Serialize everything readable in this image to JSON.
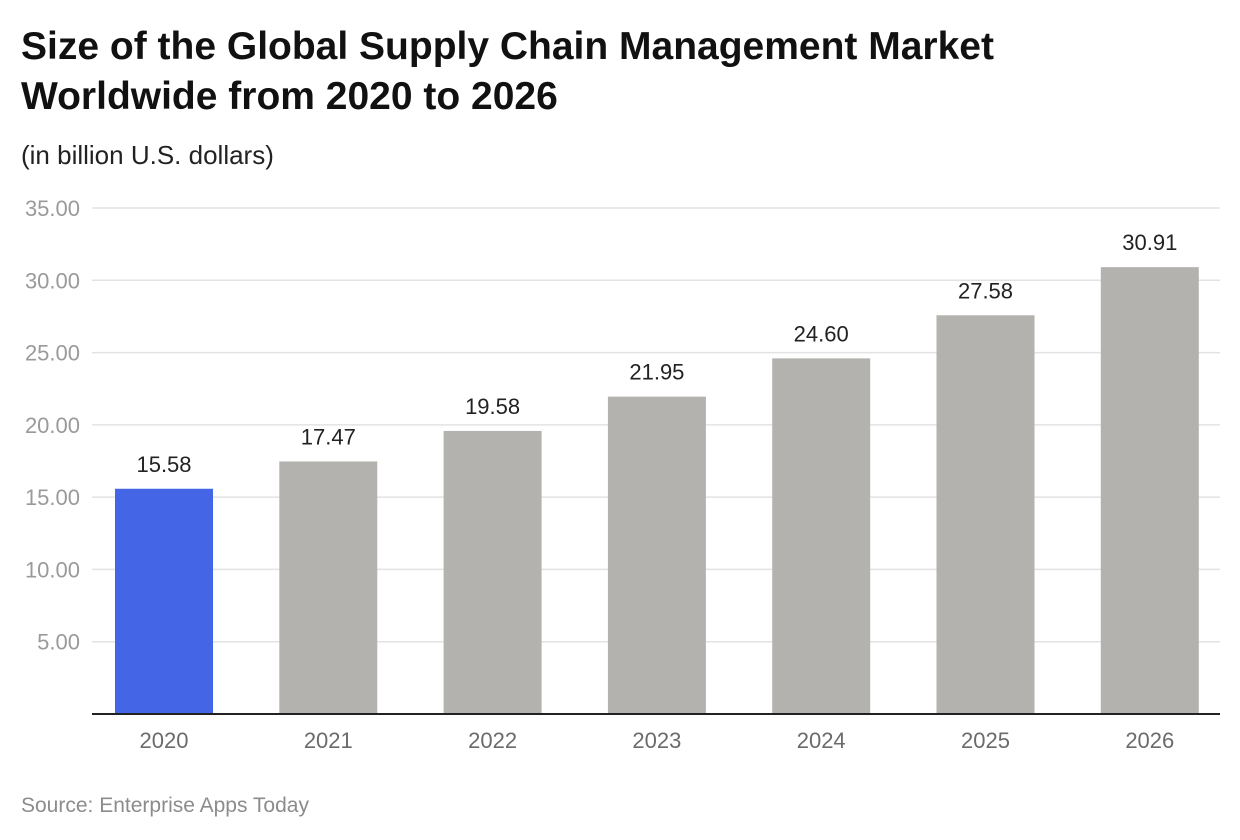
{
  "chart_data": {
    "type": "bar",
    "title": "Size of the Global Supply Chain Management Market Worldwide from 2020 to 2026",
    "subtitle": "(in billion U.S. dollars)",
    "source": "Source: Enterprise Apps Today",
    "categories": [
      "2020",
      "2021",
      "2022",
      "2023",
      "2024",
      "2025",
      "2026"
    ],
    "values": [
      15.58,
      17.47,
      19.58,
      21.95,
      24.6,
      27.58,
      30.91
    ],
    "value_labels": [
      "15.58",
      "17.47",
      "19.58",
      "21.95",
      "24.60",
      "27.58",
      "30.91"
    ],
    "xlabel": "",
    "ylabel": "",
    "ylim": [
      0,
      35
    ],
    "yticks": [
      5,
      10,
      15,
      20,
      25,
      30,
      35
    ],
    "ytick_labels": [
      "5.00",
      "10.00",
      "15.00",
      "20.00",
      "25.00",
      "30.00",
      "35.00"
    ],
    "grid": true,
    "highlight_index": 0,
    "colors": {
      "highlight": "#4466e6",
      "bar": "#b3b2ae",
      "grid": "#e3e3e3",
      "axis": "#222222"
    }
  }
}
